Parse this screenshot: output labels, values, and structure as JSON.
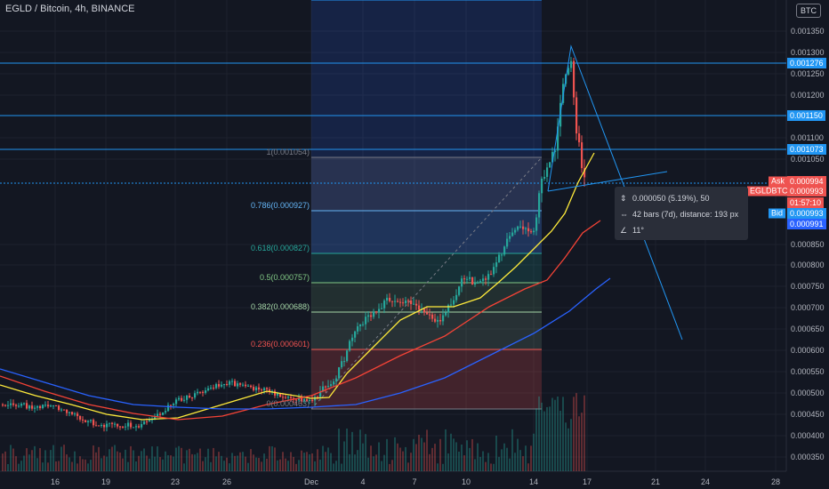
{
  "header": {
    "title": "EGLD / Bitcoin, 4h, BINANCE",
    "currency": "BTC"
  },
  "yaxis": {
    "ticks": [
      "0.001350",
      "0.001300",
      "0.001250",
      "0.001200",
      "0.001100",
      "0.001050",
      "0.000850",
      "0.000800",
      "0.000750",
      "0.000700",
      "0.000650",
      "0.000600",
      "0.000550",
      "0.000500",
      "0.000450",
      "0.000400",
      "0.000350"
    ]
  },
  "xaxis": {
    "ticks": [
      "16",
      "19",
      "23",
      "26",
      "Dec",
      "4",
      "7",
      "10",
      "14",
      "17",
      "21",
      "24",
      "28"
    ]
  },
  "price_tags": {
    "line1": "0.001276",
    "line2": "0.001150",
    "line3": "0.001073",
    "ask_label": "Ask",
    "ask_value": "0.000994",
    "symbol_label": "EGLDBTC",
    "last_value": "0.000993",
    "countdown": "01:57:10",
    "bid_label": "Bid",
    "bid_value": "0.000993",
    "low_value": "0.000991"
  },
  "fib_levels": [
    {
      "label": "1(0.001054)",
      "color": "#787b86"
    },
    {
      "label": "0.786(0.000927)",
      "color": "#64b5f6"
    },
    {
      "label": "0.618(0.000827)",
      "color": "#26a69a"
    },
    {
      "label": "0.5(0.000757)",
      "color": "#81c784"
    },
    {
      "label": "0.382(0.000688)",
      "color": "#a5d6a7"
    },
    {
      "label": "0.236(0.000601)",
      "color": "#ef5350"
    },
    {
      "label": "0(0.000463)",
      "color": "#787b86"
    }
  ],
  "measure_tooltip": {
    "price_change": "0.000050 (5.19%), 50",
    "bars": "42 bars (7d), distance: 193 px",
    "angle": "11°"
  },
  "colors": {
    "up": "#26a69a",
    "down": "#ef5350",
    "ma_fast": "#ffeb3b",
    "ma_mid": "#f44336",
    "ma_slow": "#2962ff",
    "hline": "#2196f3"
  }
}
